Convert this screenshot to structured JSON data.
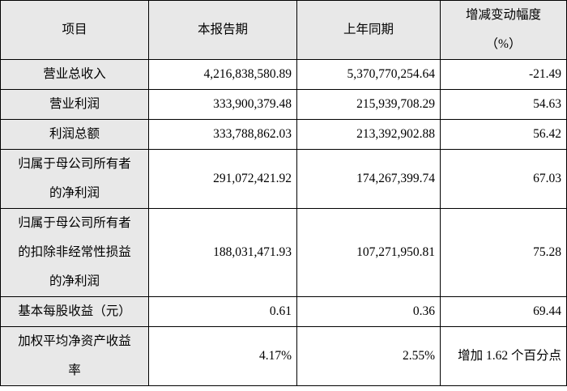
{
  "table": {
    "headers": [
      "项目",
      "本报告期",
      "上年同期",
      "增减变动幅度",
      "（%）"
    ],
    "rows": [
      {
        "label": [
          "营业总收入"
        ],
        "current": "4,216,838,580.89",
        "prior": "5,370,770,254.64",
        "change": "-21.49"
      },
      {
        "label": [
          "营业利润"
        ],
        "current": "333,900,379.48",
        "prior": "215,939,708.29",
        "change": "54.63"
      },
      {
        "label": [
          "利润总额"
        ],
        "current": "333,788,862.03",
        "prior": "213,392,902.88",
        "change": "56.42"
      },
      {
        "label": [
          "归属于母公司所有者",
          "的净利润"
        ],
        "current": "291,072,421.92",
        "prior": "174,267,399.74",
        "change": "67.03"
      },
      {
        "label": [
          "归属于母公司所有者",
          "的扣除非经常性损益",
          "的净利润"
        ],
        "current": "188,031,471.93",
        "prior": "107,271,950.81",
        "change": "75.28"
      },
      {
        "label": [
          "基本每股收益（元）"
        ],
        "current": "0.61",
        "prior": "0.36",
        "change": "69.44"
      },
      {
        "label": [
          "加权平均净资产收益",
          "率"
        ],
        "current": "4.17%",
        "prior": "2.55%",
        "change": "增加 1.62 个百分点"
      }
    ]
  }
}
